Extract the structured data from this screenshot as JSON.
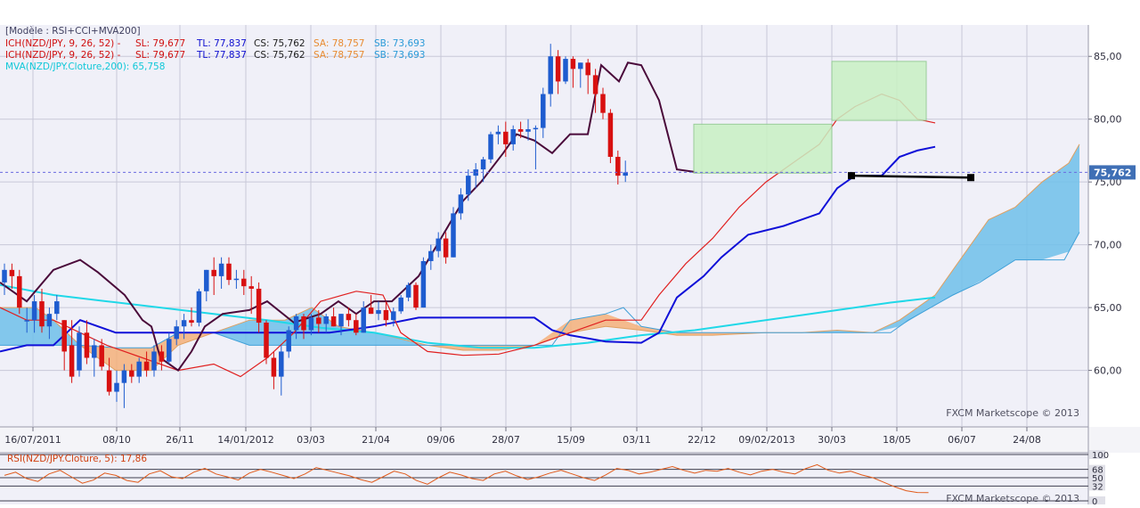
{
  "colors": {
    "background": "#f0f0f8",
    "grid": "#c8c8d8",
    "bull_candle": "#1e5ccf",
    "bear_candle": "#d81010",
    "ich_tenkan": "#e02020",
    "ich_kijun": "#1010d8",
    "ma200": "#20d8e8",
    "cloud_bull": "#6ec0ea",
    "cloud_bear": "#f4b07a",
    "overlay_line": "#4a0a3a",
    "rsi_line": "#e05a1a",
    "rect_fill": "#c9f0c4",
    "price_badge": "#3f6fb5"
  },
  "legend": {
    "line1": "[Modèle : RSI+CCI+MVA200]",
    "ich1_name": "ICH(NZD/JPY, 9, 26, 52) -",
    "ich1_sl": "SL: 79,677",
    "ich1_tl": "TL: 77,837",
    "ich1_cs": "CS: 75,762",
    "ich1_sa": "SA: 78,757",
    "ich1_sb": "SB: 73,693",
    "ich2_name": "ICH(NZD/JPY, 9, 26, 52) -",
    "ich2_sl": "SL: 79,677",
    "ich2_tl": "TL: 77,837",
    "ich2_cs": "CS: 75,762",
    "ich2_sa": "SA: 78,757",
    "ich2_sb": "SB: 73,693",
    "mva": "MVA(NZD/JPY.Cloture,200): 65,758"
  },
  "watermark_main": "FXCM Marketscope © 2013",
  "watermark_rsi": "FXCM Marketscope © 2013",
  "rsi_label": "RSI(NZD/JPY.Cloture, 5): 17,86",
  "chart_data": {
    "type": "candlestick",
    "ylim": [
      55.5,
      87.5
    ],
    "y_ticks": [
      "60,00",
      "65,00",
      "70,00",
      "75,00",
      "80,00",
      "85,00"
    ],
    "y_tick_values": [
      60,
      65,
      70,
      75,
      80,
      85
    ],
    "x_ticks": [
      "16/07/2011",
      "08/10",
      "26/11",
      "14/01/2012",
      "03/03",
      "21/04",
      "09/06",
      "28/07",
      "15/09",
      "03/11",
      "22/12",
      "09/02/2013",
      "30/03",
      "18/05",
      "06/07",
      "24/08"
    ],
    "current_price": "75,762",
    "current_price_value": 75.762,
    "rsi_ticks": [
      "100",
      "68",
      "50",
      "32",
      "0"
    ],
    "rsi_tick_values": [
      100,
      68,
      50,
      32,
      0
    ]
  }
}
